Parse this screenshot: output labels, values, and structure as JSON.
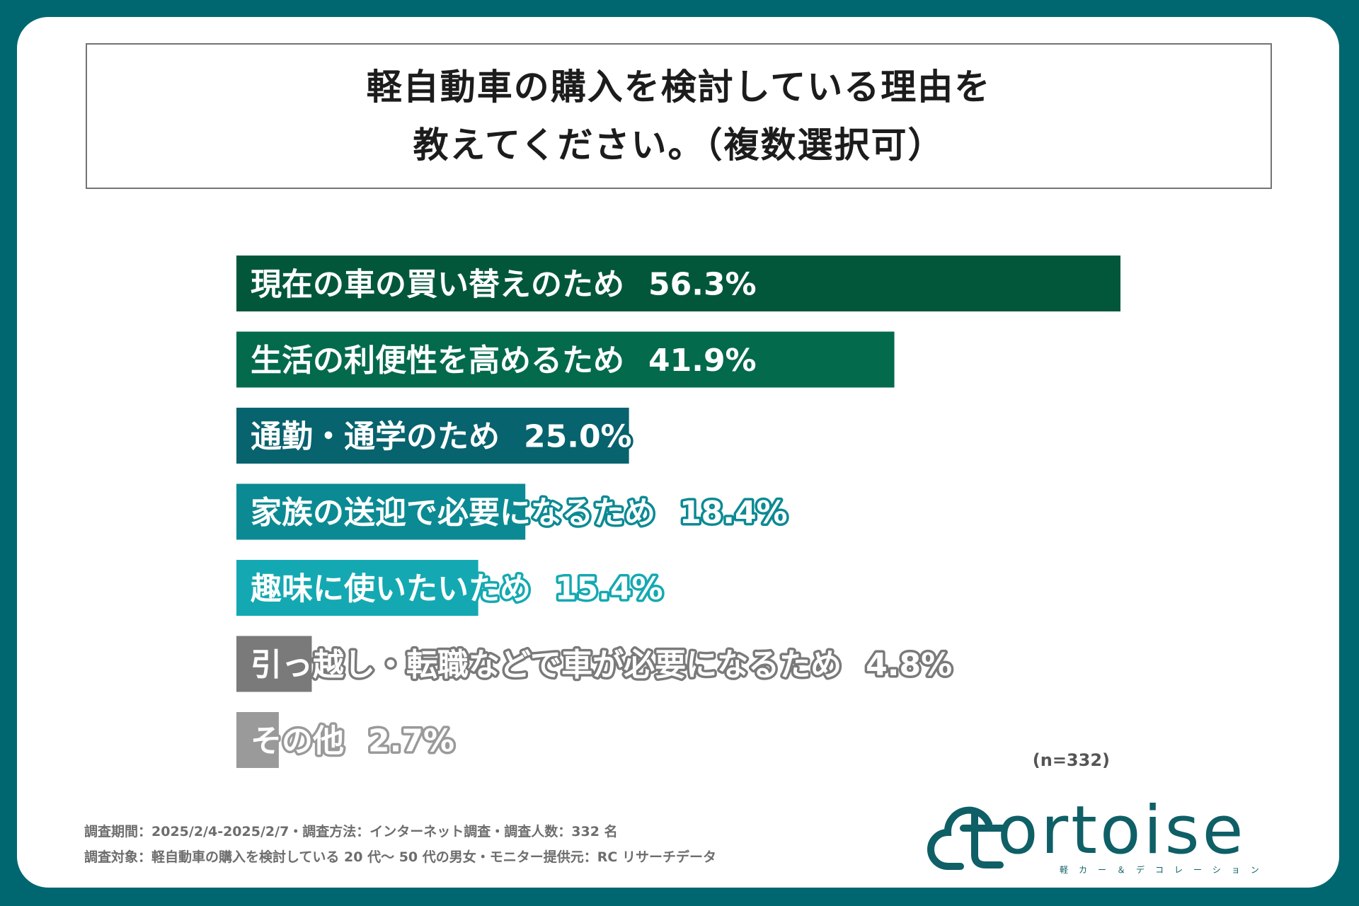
{
  "title": {
    "line1": "軽自動車の購入を検討している理由を",
    "line2": "教えてください。（複数選択可）"
  },
  "chart_data": {
    "type": "bar",
    "orientation": "horizontal",
    "title": "軽自動車の購入を検討している理由を教えてください。（複数選択可）",
    "categories": [
      "現在の車の買い替えのため",
      "生活の利便性を高めるため",
      "通勤・通学のため",
      "家族の送迎で必要になるため",
      "趣味に使いたいため",
      "引っ越し・転職などで車が必要になるため",
      "その他"
    ],
    "values": [
      56.3,
      41.9,
      25.0,
      18.4,
      15.4,
      4.8,
      2.7
    ],
    "value_labels": [
      "56.3%",
      "41.9%",
      "25.0%",
      "18.4%",
      "15.4%",
      "4.8%",
      "2.7%"
    ],
    "colors": [
      "#02573b",
      "#036a4c",
      "#07636e",
      "#0b8a93",
      "#14a9b2",
      "#7a7a7a",
      "#9a9a9a"
    ],
    "label_stroke_colors": [
      "#02573b",
      "#036a4c",
      "#07636e",
      "#0b8a93",
      "#14a9b2",
      "#7a7a7a",
      "#9a9a9a"
    ],
    "xlim": [
      0,
      56.3
    ],
    "grid": false,
    "legend": "none"
  },
  "sample_note": "(n=332)",
  "footnotes": {
    "line1": "調査期間：2025/2/4-2025/2/7・調査方法：インターネット調査・調査人数：332 名",
    "line2": "調査対象：軽自動車の購入を検討している 20 代～ 50 代の男女・モニター提供元：RC リサーチデータ"
  },
  "logo": {
    "text": "tortoise",
    "display_text": "ortoise",
    "subtitle": "軽カー＆デコレーション",
    "color": "#0f5f66"
  }
}
